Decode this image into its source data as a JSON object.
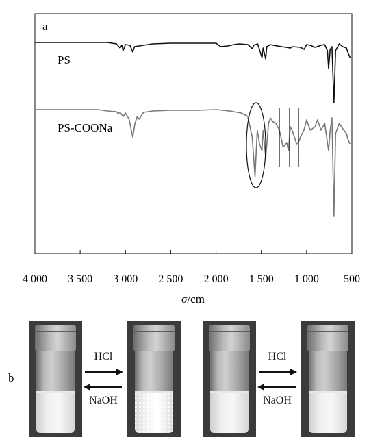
{
  "chart_data": {
    "type": "line",
    "panel_label": "a",
    "xlabel_symbol": "σ",
    "xlabel_unit": "/cm",
    "xlim": [
      4000,
      500
    ],
    "x_ticks": [
      "4 000",
      "3 500",
      "3 000",
      "2 500",
      "2 000",
      "1 500",
      "1 000",
      "500"
    ],
    "x_tick_values": [
      4000,
      3500,
      3000,
      2500,
      2000,
      1500,
      1000,
      500
    ],
    "series": [
      {
        "name": "PS",
        "color": "#111111",
        "baseline": 0,
        "points": [
          [
            4000,
            0
          ],
          [
            3200,
            0
          ],
          [
            3100,
            -2
          ],
          [
            3060,
            -8
          ],
          [
            3040,
            -4
          ],
          [
            3026,
            -12
          ],
          [
            3000,
            -3
          ],
          [
            2950,
            -4
          ],
          [
            2920,
            -14
          ],
          [
            2900,
            -6
          ],
          [
            2850,
            -5
          ],
          [
            2700,
            -2
          ],
          [
            2500,
            -1
          ],
          [
            2000,
            -1
          ],
          [
            1950,
            -6
          ],
          [
            1870,
            -5
          ],
          [
            1800,
            -3
          ],
          [
            1745,
            -2
          ],
          [
            1650,
            -3
          ],
          [
            1600,
            -9
          ],
          [
            1583,
            -4
          ],
          [
            1540,
            -2
          ],
          [
            1493,
            -22
          ],
          [
            1480,
            -8
          ],
          [
            1452,
            -24
          ],
          [
            1440,
            -6
          ],
          [
            1400,
            -3
          ],
          [
            1370,
            -4
          ],
          [
            1180,
            -8
          ],
          [
            1155,
            -6
          ],
          [
            1068,
            -7
          ],
          [
            1028,
            -10
          ],
          [
            1000,
            -3
          ],
          [
            960,
            -4
          ],
          [
            907,
            -7
          ],
          [
            840,
            -4
          ],
          [
            800,
            -3
          ],
          [
            770,
            -12
          ],
          [
            757,
            -38
          ],
          [
            740,
            -10
          ],
          [
            720,
            -6
          ],
          [
            698,
            -88
          ],
          [
            680,
            -12
          ],
          [
            640,
            -2
          ],
          [
            600,
            -6
          ],
          [
            560,
            -8
          ],
          [
            540,
            -16
          ],
          [
            520,
            -22
          ]
        ]
      },
      {
        "name": "PS-COONa",
        "color": "#777777",
        "baseline": 0,
        "points": [
          [
            4000,
            0
          ],
          [
            3300,
            0
          ],
          [
            3200,
            -2
          ],
          [
            3100,
            -3
          ],
          [
            3080,
            -6
          ],
          [
            3060,
            -4
          ],
          [
            3025,
            -10
          ],
          [
            3000,
            -5
          ],
          [
            2960,
            -14
          ],
          [
            2920,
            -40
          ],
          [
            2895,
            -20
          ],
          [
            2870,
            -10
          ],
          [
            2850,
            -14
          ],
          [
            2800,
            -4
          ],
          [
            2700,
            -2
          ],
          [
            2500,
            -1
          ],
          [
            2200,
            -1
          ],
          [
            2000,
            0
          ],
          [
            1850,
            -2
          ],
          [
            1720,
            -5
          ],
          [
            1650,
            -10
          ],
          [
            1601,
            -40
          ],
          [
            1570,
            -98
          ],
          [
            1545,
            -30
          ],
          [
            1520,
            -50
          ],
          [
            1493,
            -60
          ],
          [
            1480,
            -30
          ],
          [
            1452,
            -70
          ],
          [
            1420,
            -20
          ],
          [
            1400,
            -12
          ],
          [
            1370,
            -18
          ],
          [
            1340,
            -20
          ],
          [
            1300,
            -30
          ],
          [
            1260,
            -55
          ],
          [
            1220,
            -48
          ],
          [
            1200,
            -60
          ],
          [
            1180,
            -25
          ],
          [
            1160,
            -30
          ],
          [
            1110,
            -50
          ],
          [
            1080,
            -45
          ],
          [
            1068,
            -40
          ],
          [
            1030,
            -30
          ],
          [
            1000,
            -15
          ],
          [
            960,
            -30
          ],
          [
            907,
            -25
          ],
          [
            880,
            -15
          ],
          [
            840,
            -30
          ],
          [
            800,
            -20
          ],
          [
            757,
            -60
          ],
          [
            740,
            -30
          ],
          [
            720,
            -12
          ],
          [
            698,
            -155
          ],
          [
            680,
            -35
          ],
          [
            640,
            -20
          ],
          [
            600,
            -28
          ],
          [
            560,
            -35
          ],
          [
            540,
            -45
          ],
          [
            520,
            -50
          ]
        ]
      }
    ],
    "annotations": "ellipse around ~1560 cm⁻¹ band and vertical lines at ~1290, 1200, 1150, 1080 cm⁻¹ on PS-COONa"
  },
  "photos": {
    "panel_label": "b",
    "vials": [
      {
        "state": "clear"
      },
      {
        "state": "cloudy"
      },
      {
        "state": "clear"
      },
      {
        "state": "clear"
      }
    ],
    "arrows": [
      {
        "forward": "HCl",
        "backward": "NaOH"
      },
      {
        "forward": "HCl",
        "backward": "NaOH"
      }
    ]
  }
}
